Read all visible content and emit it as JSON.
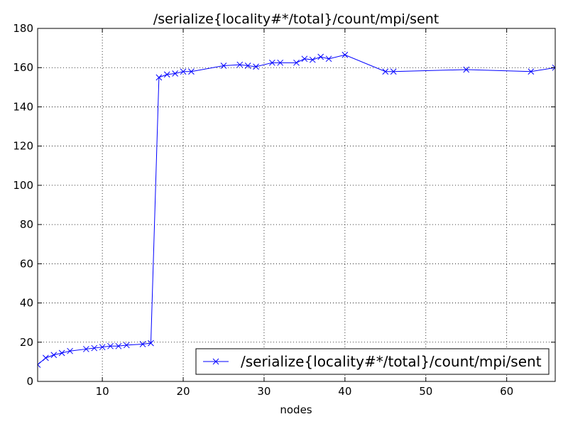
{
  "chart_data": {
    "type": "line",
    "title": "/serialize{locality#*/total}/count/mpi/sent",
    "xlabel": "nodes",
    "ylabel": "",
    "xlim": [
      2,
      66
    ],
    "ylim": [
      0,
      180
    ],
    "xticks": [
      10,
      20,
      30,
      40,
      50,
      60
    ],
    "yticks": [
      0,
      20,
      40,
      60,
      80,
      100,
      120,
      140,
      160,
      180
    ],
    "grid": true,
    "legend_position": "bottom-right",
    "series": [
      {
        "name": "/serialize{locality#*/total}/count/mpi/sent",
        "color": "#0000ff",
        "marker": "x",
        "x": [
          2,
          3,
          4,
          5,
          6,
          8,
          9,
          10,
          11,
          12,
          13,
          15,
          16,
          17,
          18,
          19,
          20,
          21,
          25,
          27,
          28,
          29,
          31,
          32,
          34,
          35,
          36,
          37,
          38,
          40,
          45,
          46,
          55,
          63,
          66
        ],
        "y": [
          8.5,
          12,
          13.5,
          14.5,
          15.5,
          16.5,
          17,
          17.5,
          18,
          18,
          18.5,
          19,
          19.5,
          155,
          156.5,
          157,
          158,
          158,
          161,
          161.5,
          161,
          160.5,
          162.5,
          162.5,
          162.5,
          164.5,
          164,
          165.5,
          164.5,
          166.5,
          158,
          158,
          159,
          158,
          160
        ]
      }
    ]
  }
}
